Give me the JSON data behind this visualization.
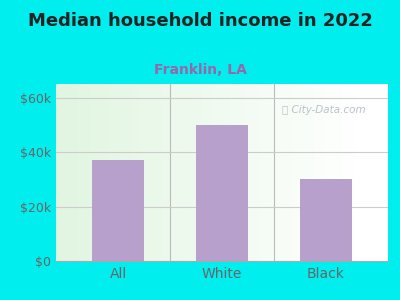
{
  "title": "Median household income in 2022",
  "subtitle": "Franklin, LA",
  "categories": [
    "All",
    "White",
    "Black"
  ],
  "values": [
    37000,
    50000,
    30000
  ],
  "bar_color": "#b8a0cc",
  "background_color": "#00EEEE",
  "title_fontsize": 13,
  "subtitle_fontsize": 10,
  "subtitle_color": "#9966aa",
  "tick_label_color": "#666666",
  "ylim": [
    0,
    65000
  ],
  "yticks": [
    0,
    20000,
    40000,
    60000
  ],
  "ytick_labels": [
    "$0",
    "$20k",
    "$40k",
    "$60k"
  ],
  "grid_color": "#cccccc",
  "watermark": "City-Data.com",
  "watermark_color": "#b0b8c0"
}
